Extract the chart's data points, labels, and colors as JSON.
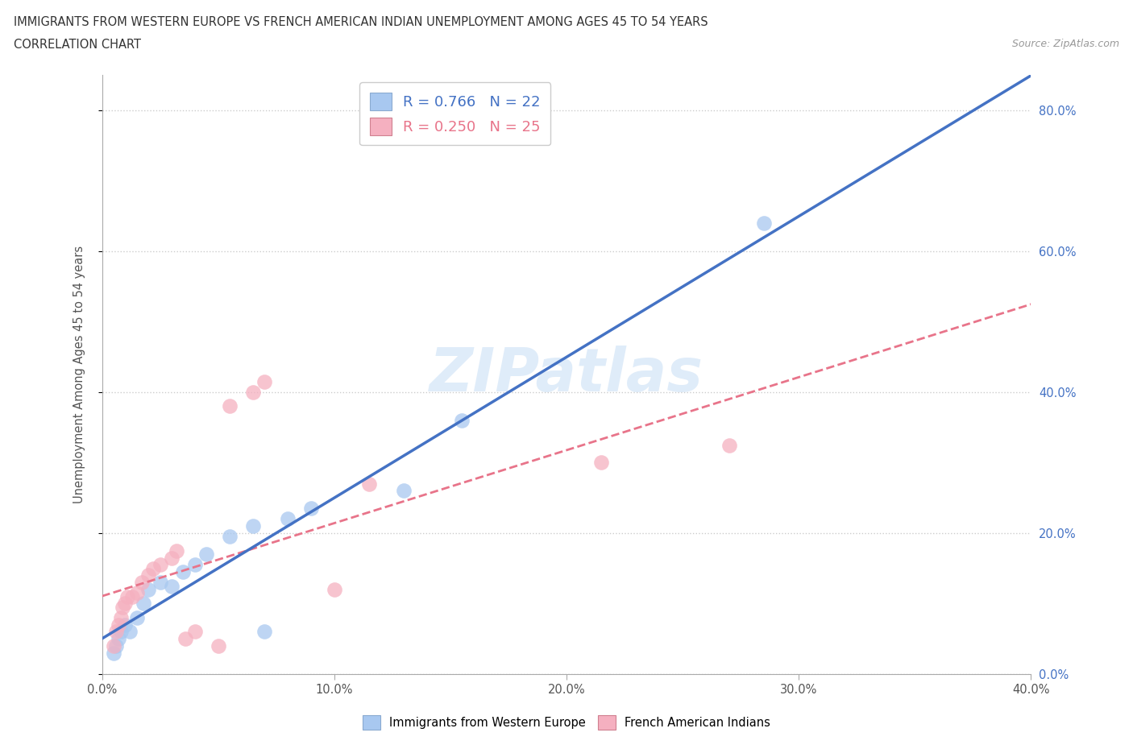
{
  "title_line1": "IMMIGRANTS FROM WESTERN EUROPE VS FRENCH AMERICAN INDIAN UNEMPLOYMENT AMONG AGES 45 TO 54 YEARS",
  "title_line2": "CORRELATION CHART",
  "source": "Source: ZipAtlas.com",
  "ylabel": "Unemployment Among Ages 45 to 54 years",
  "xlim": [
    0.0,
    0.4
  ],
  "ylim": [
    0.0,
    0.85
  ],
  "ytick_vals": [
    0.0,
    0.2,
    0.4,
    0.6,
    0.8
  ],
  "ytick_labels": [
    "0.0%",
    "20.0%",
    "40.0%",
    "60.0%",
    "80.0%"
  ],
  "xtick_vals": [
    0.0,
    0.1,
    0.2,
    0.3,
    0.4
  ],
  "xtick_labels": [
    "0.0%",
    "10.0%",
    "20.0%",
    "30.0%",
    "40.0%"
  ],
  "blue_R": 0.766,
  "blue_N": 22,
  "pink_R": 0.25,
  "pink_N": 25,
  "blue_scatter_x": [
    0.005,
    0.006,
    0.007,
    0.008,
    0.01,
    0.012,
    0.015,
    0.018,
    0.02,
    0.025,
    0.03,
    0.035,
    0.04,
    0.045,
    0.055,
    0.065,
    0.07,
    0.08,
    0.09,
    0.13,
    0.155,
    0.285
  ],
  "blue_scatter_y": [
    0.03,
    0.04,
    0.05,
    0.06,
    0.07,
    0.06,
    0.08,
    0.1,
    0.12,
    0.13,
    0.125,
    0.145,
    0.155,
    0.17,
    0.195,
    0.21,
    0.06,
    0.22,
    0.235,
    0.26,
    0.36,
    0.64
  ],
  "pink_scatter_x": [
    0.005,
    0.006,
    0.007,
    0.008,
    0.009,
    0.01,
    0.011,
    0.013,
    0.015,
    0.017,
    0.02,
    0.022,
    0.025,
    0.03,
    0.032,
    0.036,
    0.04,
    0.05,
    0.055,
    0.065,
    0.07,
    0.1,
    0.115,
    0.215,
    0.27
  ],
  "pink_scatter_y": [
    0.04,
    0.06,
    0.07,
    0.08,
    0.095,
    0.1,
    0.11,
    0.11,
    0.115,
    0.13,
    0.14,
    0.15,
    0.155,
    0.165,
    0.175,
    0.05,
    0.06,
    0.04,
    0.38,
    0.4,
    0.415,
    0.12,
    0.27,
    0.3,
    0.325
  ],
  "blue_color": "#A8C8F0",
  "pink_color": "#F5B0C0",
  "blue_line_color": "#4472C4",
  "pink_line_color": "#E8748A",
  "watermark": "ZIPatlas",
  "background_color": "#FFFFFF",
  "grid_color": "#CCCCCC",
  "tick_color": "#AAAAAA",
  "label_color": "#555555"
}
